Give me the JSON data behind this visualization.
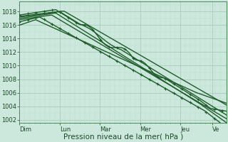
{
  "background_color": "#cce8dc",
  "plot_bg_color": "#cce8dc",
  "grid_major_color": "#aaccbb",
  "grid_minor_color": "#bbddd0",
  "line_color": "#1e5c2a",
  "ylim": [
    1001.5,
    1019.5
  ],
  "yticks": [
    1002,
    1004,
    1006,
    1008,
    1010,
    1012,
    1014,
    1016,
    1018
  ],
  "days": [
    "Dim",
    "Lun",
    "Mar",
    "Mer",
    "Jeu",
    "Ve"
  ],
  "day_positions": [
    0,
    1,
    2,
    3,
    4,
    4.8
  ],
  "xlabel": "Pression niveau de la mer( hPa )",
  "n_days": 5.15,
  "n_steps": 103,
  "tick_fontsize": 6,
  "label_fontsize": 7.5
}
